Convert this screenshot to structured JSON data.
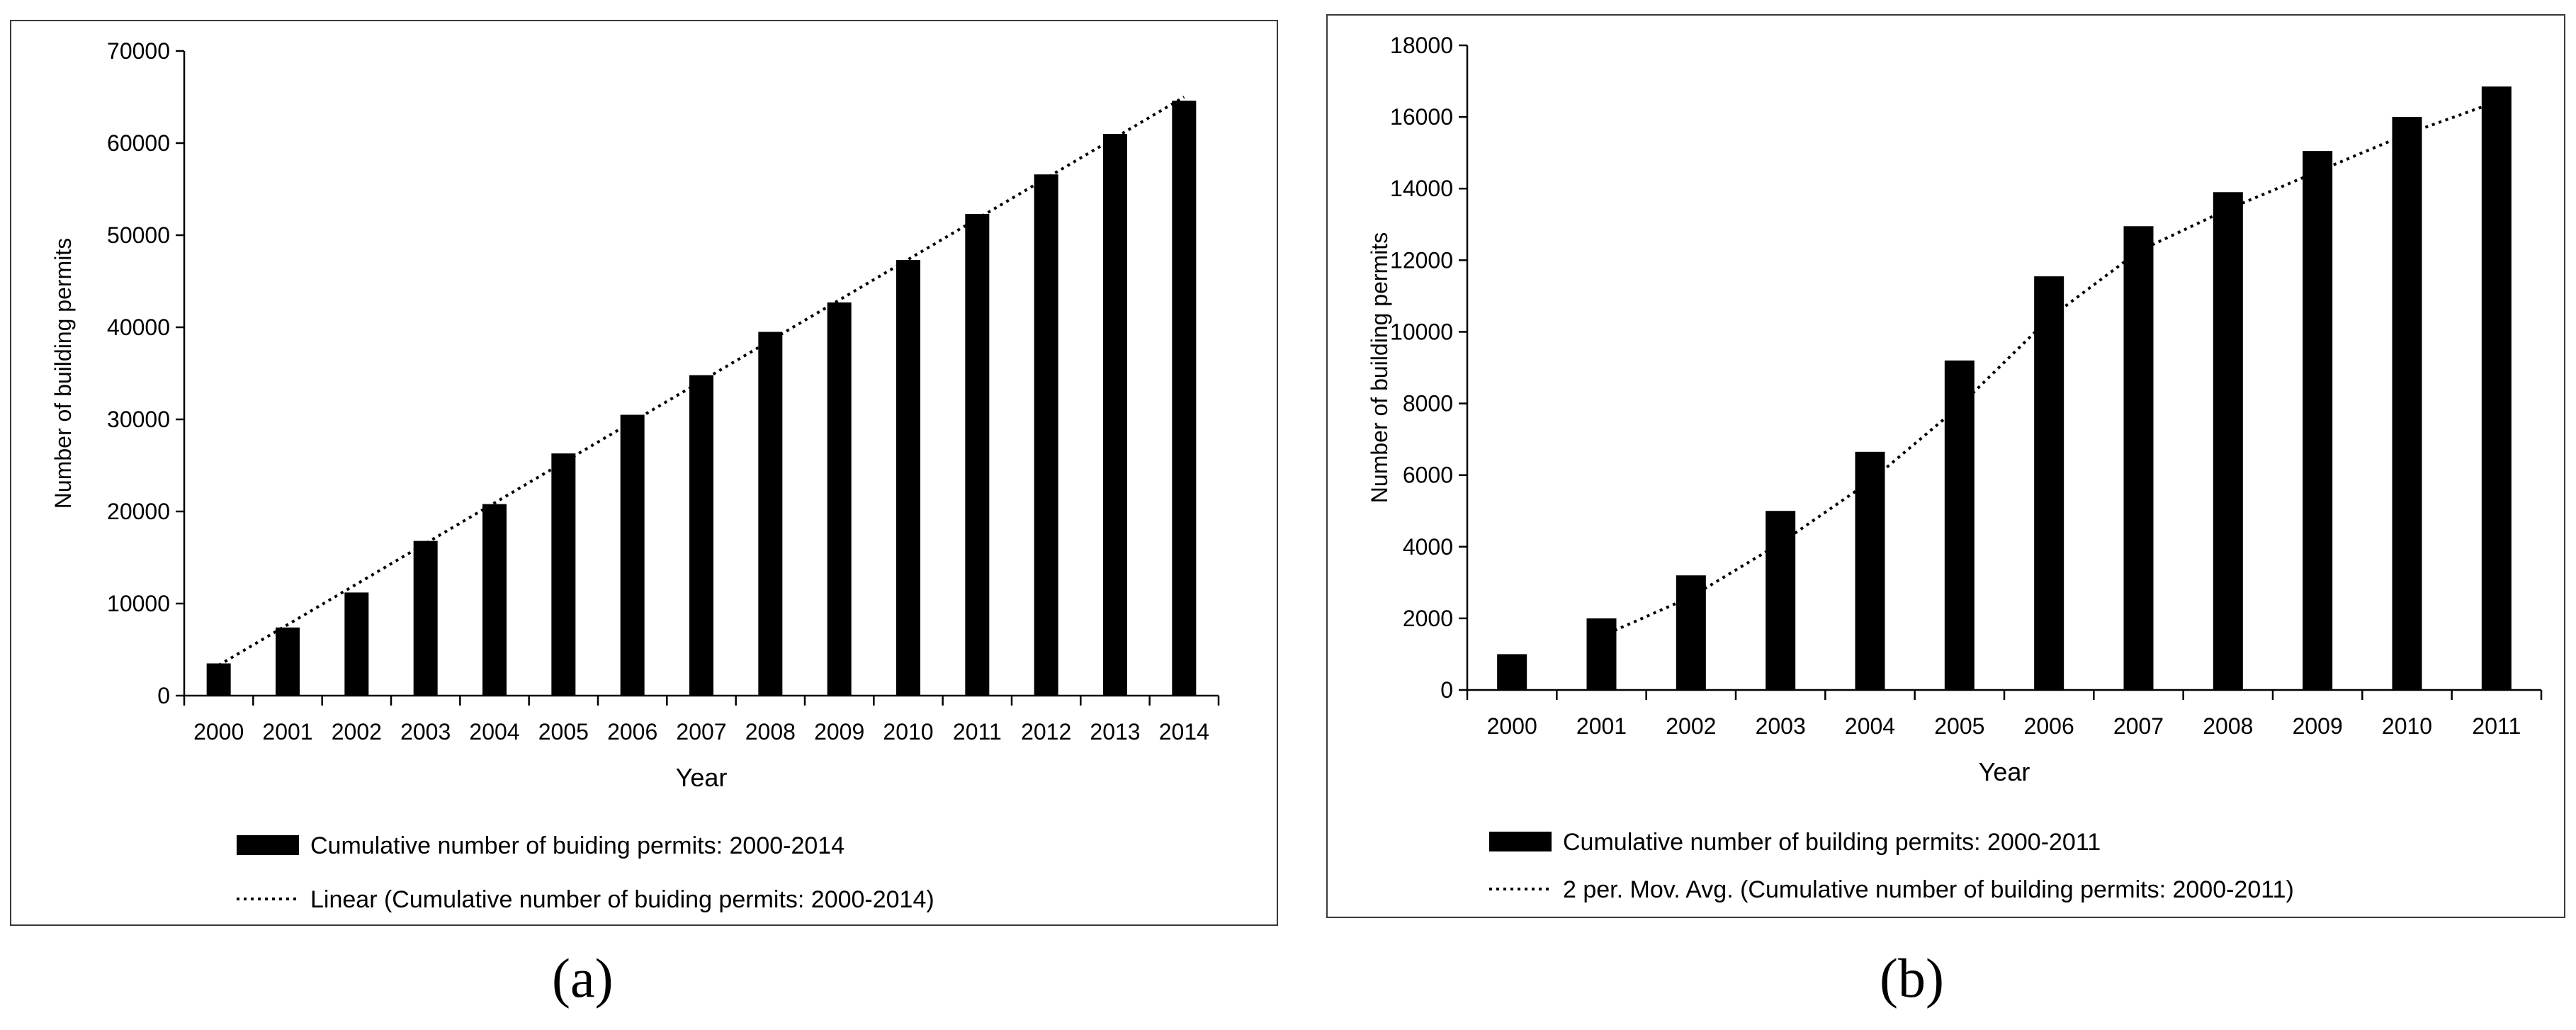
{
  "chart_data": [
    {
      "type": "bar",
      "categories": [
        "2000",
        "2001",
        "2002",
        "2003",
        "2004",
        "2005",
        "2006",
        "2007",
        "2008",
        "2009",
        "2010",
        "2011",
        "2012",
        "2013",
        "2014"
      ],
      "ylim": [
        0,
        70000
      ],
      "yticks": [
        0,
        10000,
        20000,
        30000,
        40000,
        50000,
        60000,
        70000
      ],
      "xlabel": "Year",
      "ylabel": "Number of building permits",
      "grid": false,
      "legend_position": "bottom",
      "series": [
        {
          "name": "Cumulative number of buiding permits: 2000-2014",
          "kind": "bar",
          "values": [
            3500,
            7400,
            11200,
            16800,
            20800,
            26300,
            30500,
            34800,
            39500,
            42700,
            47300,
            52300,
            56600,
            61000,
            64600
          ]
        },
        {
          "name": "Linear (Cumulative number of buiding permits: 2000-2014)",
          "kind": "dotted-line",
          "trend": "linear",
          "start": 3300,
          "end": 65000
        }
      ]
    },
    {
      "type": "bar",
      "categories": [
        "2000",
        "2001",
        "2002",
        "2003",
        "2004",
        "2005",
        "2006",
        "2007",
        "2008",
        "2009",
        "2010",
        "2011"
      ],
      "ylim": [
        0,
        18000
      ],
      "yticks": [
        0,
        2000,
        4000,
        6000,
        8000,
        10000,
        12000,
        14000,
        16000,
        18000
      ],
      "xlabel": "Year",
      "ylabel": "Number of building permits",
      "grid": false,
      "legend_position": "bottom",
      "series": [
        {
          "name": "Cumulative number of building permits: 2000-2011",
          "kind": "bar",
          "values": [
            1000,
            2000,
            3200,
            5000,
            6650,
            9200,
            11550,
            12950,
            13900,
            15050,
            16000,
            16850
          ]
        },
        {
          "name": "2 per. Mov. Avg. (Cumulative number of building permits: 2000-2011)",
          "kind": "dotted-line",
          "trend": "moving-average-2"
        }
      ]
    }
  ],
  "captions": [
    "(a)",
    "(b)"
  ]
}
